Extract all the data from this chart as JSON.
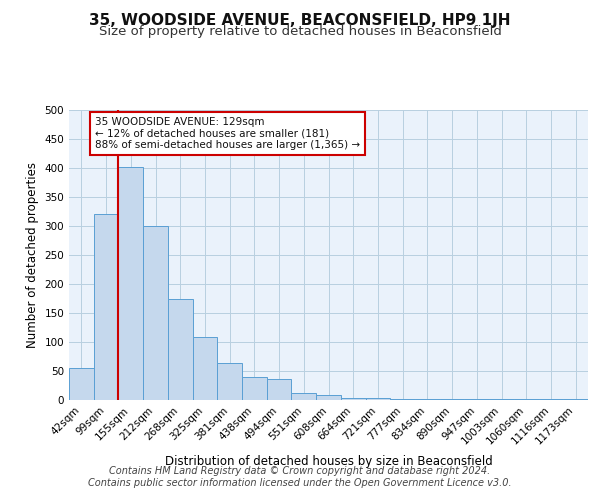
{
  "title": "35, WOODSIDE AVENUE, BEACONSFIELD, HP9 1JH",
  "subtitle": "Size of property relative to detached houses in Beaconsfield",
  "xlabel": "Distribution of detached houses by size in Beaconsfield",
  "ylabel": "Number of detached properties",
  "footer_line1": "Contains HM Land Registry data © Crown copyright and database right 2024.",
  "footer_line2": "Contains public sector information licensed under the Open Government Licence v3.0.",
  "categories": [
    "42sqm",
    "99sqm",
    "155sqm",
    "212sqm",
    "268sqm",
    "325sqm",
    "381sqm",
    "438sqm",
    "494sqm",
    "551sqm",
    "608sqm",
    "664sqm",
    "721sqm",
    "777sqm",
    "834sqm",
    "890sqm",
    "947sqm",
    "1003sqm",
    "1060sqm",
    "1116sqm",
    "1173sqm"
  ],
  "values": [
    55,
    320,
    402,
    300,
    175,
    108,
    63,
    40,
    37,
    12,
    8,
    4,
    4,
    2,
    2,
    2,
    2,
    1,
    1,
    1,
    1
  ],
  "bar_color": "#c5d8ed",
  "bar_edge_color": "#5a9fd4",
  "property_line_color": "#cc0000",
  "annotation_text": "35 WOODSIDE AVENUE: 129sqm\n← 12% of detached houses are smaller (181)\n88% of semi-detached houses are larger (1,365) →",
  "annotation_box_color": "#ffffff",
  "annotation_box_edge": "#cc0000",
  "ylim": [
    0,
    500
  ],
  "yticks": [
    0,
    50,
    100,
    150,
    200,
    250,
    300,
    350,
    400,
    450,
    500
  ],
  "bg_color": "#ffffff",
  "plot_bg_color": "#eaf2fb",
  "grid_color": "#b8cfe0",
  "title_fontsize": 11,
  "subtitle_fontsize": 9.5,
  "axis_label_fontsize": 8.5,
  "tick_fontsize": 7.5,
  "footer_fontsize": 7,
  "annotation_fontsize": 7.5
}
